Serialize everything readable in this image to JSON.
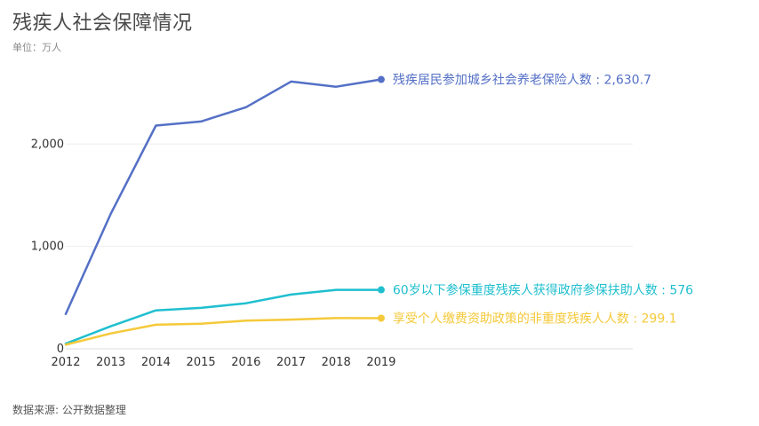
{
  "header": {
    "title": "残疾人社会保障情况",
    "subtitle": "单位：万人"
  },
  "footer": {
    "source": "数据来源: 公开数据整理"
  },
  "chart_data": {
    "type": "line",
    "title": "残疾人社会保障情况",
    "ylabel": "",
    "xlabel": "",
    "x": [
      "2012",
      "2013",
      "2014",
      "2015",
      "2016",
      "2017",
      "2018",
      "2019"
    ],
    "ylim": [
      0,
      2800
    ],
    "yticks": [
      0,
      1000,
      2000
    ],
    "ytick_labels": [
      "0",
      "1,000",
      "2,000"
    ],
    "grid": true,
    "legend": "inline end labels",
    "series": [
      {
        "name": "残疾居民参加城乡社会养老保险人数",
        "end_label": "残疾居民参加城乡社会养老保险人数 : 2,630.7",
        "color": "#5470c6",
        "values": [
          340,
          1320,
          2180,
          2220,
          2360,
          2610,
          2560,
          2630.7
        ]
      },
      {
        "name": "60岁以下参保重度残疾人获得政府参保扶助人数",
        "end_label": "60岁以下参保重度残疾人获得政府参保扶助人数 : 576",
        "color": "#1fbfcf",
        "values": [
          50,
          220,
          375,
          400,
          445,
          530,
          576,
          576
        ]
      },
      {
        "name": "享受个人缴费资助政策的非重度残疾人人数",
        "end_label": "享受个人缴费资助政策的非重度残疾人人数 : 299.1",
        "color": "#f5c93a",
        "values": [
          40,
          150,
          235,
          245,
          275,
          285,
          300,
          299.1
        ]
      }
    ]
  }
}
